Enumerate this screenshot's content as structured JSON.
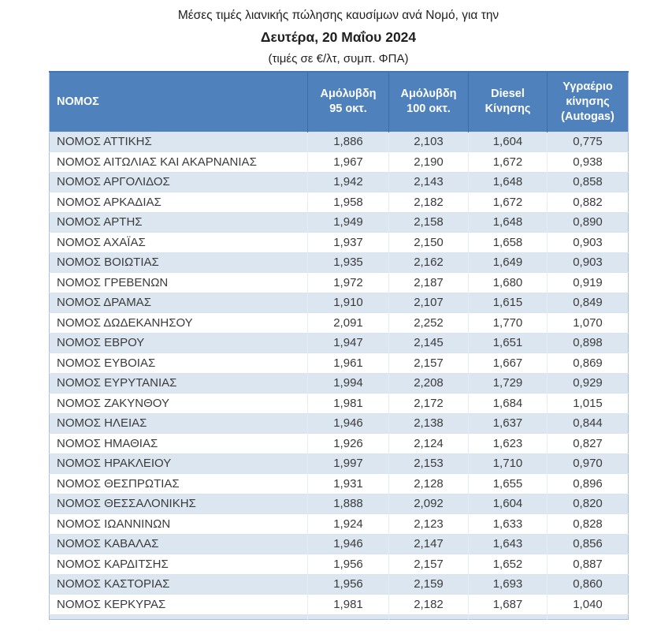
{
  "title": {
    "line1": "Μέσες τιμές λιανικής πώλησης καυσίμων ανά Νομό, για την",
    "line2": "Δευτέρα, 20 Μαΐου 2024",
    "line3": "(τιμές σε €/λτ, συμπ. ΦΠΑ)"
  },
  "colors": {
    "header_bg": "#4f81bd",
    "header_text": "#ffffff",
    "row_alt_bg": "#dce6f1",
    "row_bg": "#ffffff",
    "body_text": "#3b3b3b"
  },
  "table": {
    "columns": [
      "ΝΟΜΟΣ",
      "Αμόλυβδη 95 οκτ.",
      "Αμόλυβδη 100 οκτ.",
      "Diesel Κίνησης",
      "Υγραέριο κίνησης (Autogas)"
    ],
    "rows": [
      [
        "ΝΟΜΟΣ ΑΤΤΙΚΗΣ",
        "1,886",
        "2,103",
        "1,604",
        "0,775"
      ],
      [
        "ΝΟΜΟΣ ΑΙΤΩΛΙΑΣ ΚΑΙ ΑΚΑΡΝΑΝΙΑΣ",
        "1,967",
        "2,190",
        "1,672",
        "0,938"
      ],
      [
        "ΝΟΜΟΣ ΑΡΓΟΛΙΔΟΣ",
        "1,942",
        "2,143",
        "1,648",
        "0,858"
      ],
      [
        "ΝΟΜΟΣ ΑΡΚΑΔΙΑΣ",
        "1,958",
        "2,182",
        "1,672",
        "0,882"
      ],
      [
        "ΝΟΜΟΣ ΑΡΤΗΣ",
        "1,949",
        "2,158",
        "1,648",
        "0,890"
      ],
      [
        "ΝΟΜΟΣ ΑΧΑΪΑΣ",
        "1,937",
        "2,150",
        "1,658",
        "0,903"
      ],
      [
        "ΝΟΜΟΣ ΒΟΙΩΤΙΑΣ",
        "1,935",
        "2,162",
        "1,649",
        "0,903"
      ],
      [
        "ΝΟΜΟΣ ΓΡΕΒΕΝΩΝ",
        "1,972",
        "2,187",
        "1,680",
        "0,919"
      ],
      [
        "ΝΟΜΟΣ ΔΡΑΜΑΣ",
        "1,910",
        "2,107",
        "1,615",
        "0,849"
      ],
      [
        "ΝΟΜΟΣ ΔΩΔΕΚΑΝΗΣΟΥ",
        "2,091",
        "2,252",
        "1,770",
        "1,070"
      ],
      [
        "ΝΟΜΟΣ ΕΒΡΟΥ",
        "1,947",
        "2,145",
        "1,651",
        "0,898"
      ],
      [
        "ΝΟΜΟΣ ΕΥΒΟΙΑΣ",
        "1,961",
        "2,157",
        "1,667",
        "0,869"
      ],
      [
        "ΝΟΜΟΣ ΕΥΡΥΤΑΝΙΑΣ",
        "1,994",
        "2,208",
        "1,729",
        "0,929"
      ],
      [
        "ΝΟΜΟΣ ΖΑΚΥΝΘΟΥ",
        "1,981",
        "2,172",
        "1,684",
        "1,015"
      ],
      [
        "ΝΟΜΟΣ ΗΛΕΙΑΣ",
        "1,946",
        "2,138",
        "1,637",
        "0,844"
      ],
      [
        "ΝΟΜΟΣ ΗΜΑΘΙΑΣ",
        "1,926",
        "2,124",
        "1,623",
        "0,827"
      ],
      [
        "ΝΟΜΟΣ ΗΡΑΚΛΕΙΟΥ",
        "1,997",
        "2,153",
        "1,710",
        "0,970"
      ],
      [
        "ΝΟΜΟΣ ΘΕΣΠΡΩΤΙΑΣ",
        "1,931",
        "2,128",
        "1,655",
        "0,896"
      ],
      [
        "ΝΟΜΟΣ ΘΕΣΣΑΛΟΝΙΚΗΣ",
        "1,888",
        "2,092",
        "1,604",
        "0,820"
      ],
      [
        "ΝΟΜΟΣ ΙΩΑΝΝΙΝΩΝ",
        "1,924",
        "2,123",
        "1,633",
        "0,828"
      ],
      [
        "ΝΟΜΟΣ ΚΑΒΑΛΑΣ",
        "1,946",
        "2,147",
        "1,643",
        "0,856"
      ],
      [
        "ΝΟΜΟΣ ΚΑΡΔΙΤΣΗΣ",
        "1,956",
        "2,157",
        "1,652",
        "0,887"
      ],
      [
        "ΝΟΜΟΣ ΚΑΣΤΟΡΙΑΣ",
        "1,956",
        "2,159",
        "1,693",
        "0,860"
      ],
      [
        "ΝΟΜΟΣ ΚΕΡΚΥΡΑΣ",
        "1,981",
        "2,182",
        "1,687",
        "1,040"
      ]
    ]
  }
}
